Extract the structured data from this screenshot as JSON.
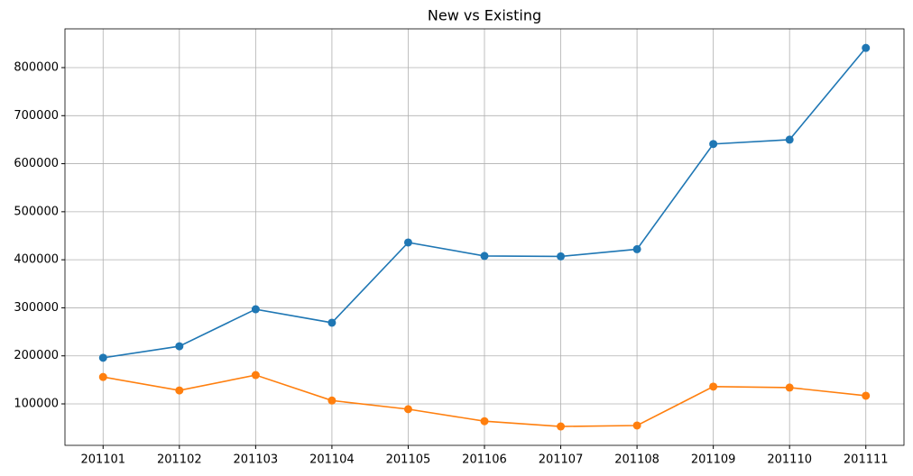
{
  "chart_data": {
    "type": "line",
    "title": "New vs Existing",
    "categories": [
      "201101",
      "201102",
      "201103",
      "201104",
      "201105",
      "201106",
      "201107",
      "201108",
      "201109",
      "201110",
      "201111"
    ],
    "series": [
      {
        "color": "#1f77b4",
        "values": [
          196000,
          220000,
          297000,
          269000,
          436000,
          408000,
          407000,
          422000,
          641000,
          650000,
          841000
        ]
      },
      {
        "color": "#ff7f0e",
        "values": [
          156000,
          128000,
          160000,
          107000,
          89000,
          64000,
          53000,
          55000,
          136000,
          134000,
          117000
        ]
      }
    ],
    "ylim": [
      13700,
      880700
    ],
    "yticks": [
      100000,
      200000,
      300000,
      400000,
      500000,
      600000,
      700000,
      800000
    ],
    "grid": true
  }
}
